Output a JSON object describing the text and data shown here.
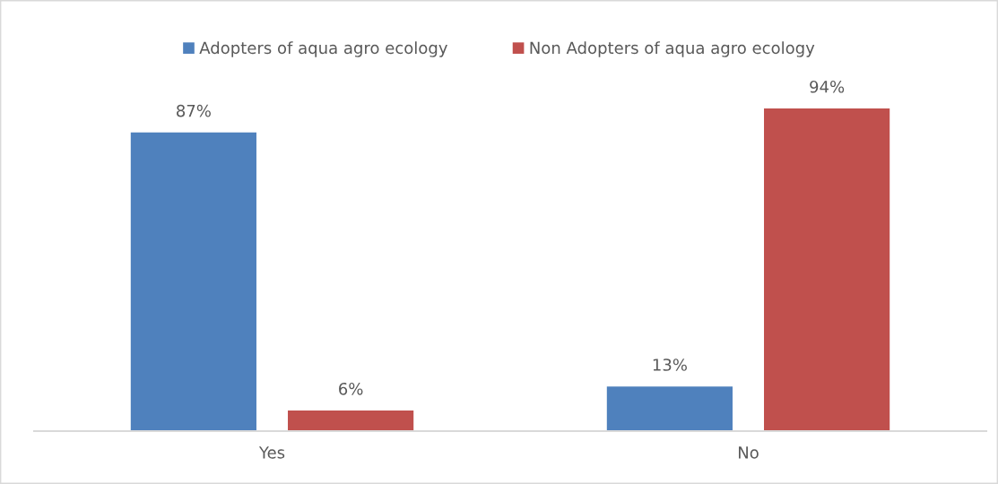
{
  "chart_data": {
    "type": "bar",
    "categories": [
      "Yes",
      "No"
    ],
    "series": [
      {
        "name": "Adopters of aqua agro ecology",
        "color": "#4f81bd",
        "values": [
          87,
          13
        ],
        "value_labels": [
          "87%",
          "13%"
        ]
      },
      {
        "name": "Non Adopters of aqua agro ecology",
        "color": "#c0504d",
        "values": [
          6,
          94
        ],
        "value_labels": [
          "6%",
          "94%"
        ]
      }
    ],
    "tick_labels": "x",
    "legend": "top"
  }
}
